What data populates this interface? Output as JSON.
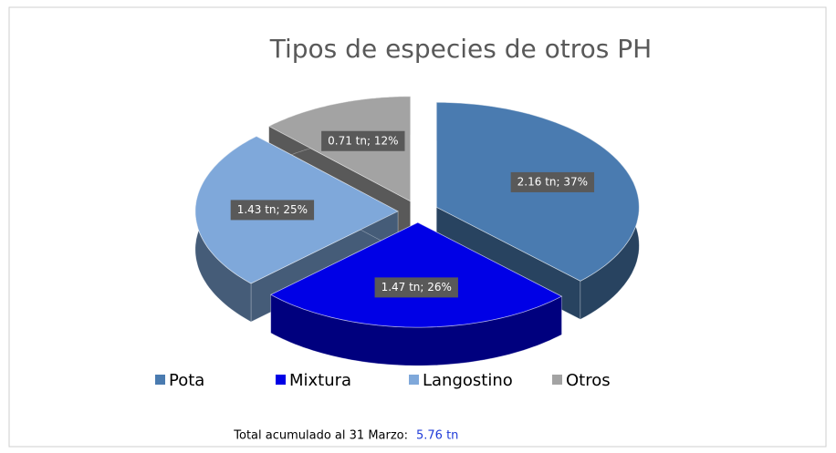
{
  "chart_data": {
    "type": "pie3d",
    "title": "Tipos de especies de otros PH",
    "categories": [
      "Pota",
      "Mixtura",
      "Langostino",
      "Otros"
    ],
    "values": [
      2.16,
      1.47,
      1.43,
      0.71
    ],
    "value_labels": [
      "2.16 tn; 37%",
      "1.47 tn; 26%",
      "1.43 tn; 25%",
      "0.71 tn; 12%"
    ],
    "colors": [
      "#4a7bb0",
      "#0000e6",
      "#7fa8da",
      "#a3a3a3"
    ],
    "legend": "bottom",
    "note": "Total acumulado al 31 Marzo:",
    "note_value": "5.76 tn"
  }
}
